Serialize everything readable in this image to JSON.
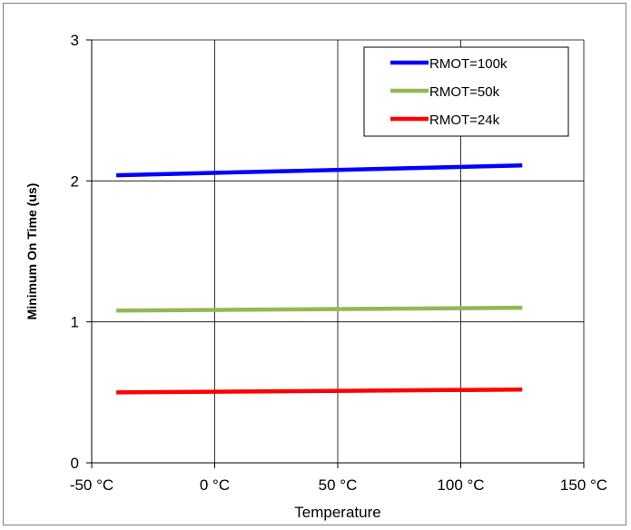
{
  "chart_data": {
    "type": "line",
    "title": "",
    "xlabel": "Temperature",
    "ylabel": "Minimum On Time (us)",
    "xlim": [
      -50,
      150
    ],
    "ylim": [
      0,
      3
    ],
    "x_ticks": [
      -50,
      0,
      50,
      100,
      150
    ],
    "x_tick_labels": [
      "-50 °C",
      "0 °C",
      "50 °C",
      "100 °C",
      "150 °C"
    ],
    "y_ticks": [
      0,
      1,
      2,
      3
    ],
    "y_tick_labels": [
      "0",
      "1",
      "2",
      "3"
    ],
    "grid": true,
    "legend_position": "top-right",
    "x": [
      -40,
      125
    ],
    "series": [
      {
        "name": "RMOT=100k",
        "color": "#0000ff",
        "values": [
          2.04,
          2.11
        ]
      },
      {
        "name": "RMOT=50k",
        "color": "#92b954",
        "values": [
          1.08,
          1.1
        ]
      },
      {
        "name": "RMOT=24k",
        "color": "#ff0000",
        "values": [
          0.5,
          0.52
        ]
      }
    ]
  }
}
